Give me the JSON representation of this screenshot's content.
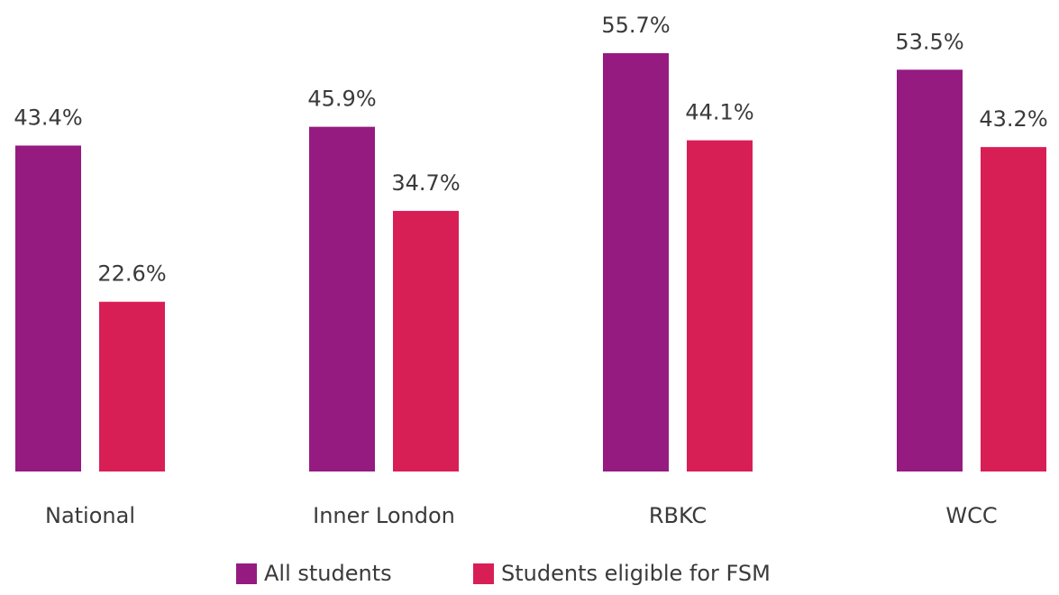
{
  "chart_data": {
    "type": "bar",
    "categories": [
      "National",
      "Inner London",
      "RBKC",
      "WCC"
    ],
    "series": [
      {
        "name": "All students",
        "color": "#951b80",
        "values": [
          43.4,
          45.9,
          55.7,
          53.5
        ],
        "value_labels": [
          "43.4%",
          "45.9%",
          "55.7%",
          "53.5%"
        ]
      },
      {
        "name": "Students eligible for FSM",
        "color": "#d81f55",
        "values": [
          22.6,
          34.7,
          44.1,
          43.2
        ],
        "value_labels": [
          "22.6%",
          "34.7%",
          "44.1%",
          "43.2%"
        ]
      }
    ],
    "legend": "bottom"
  }
}
